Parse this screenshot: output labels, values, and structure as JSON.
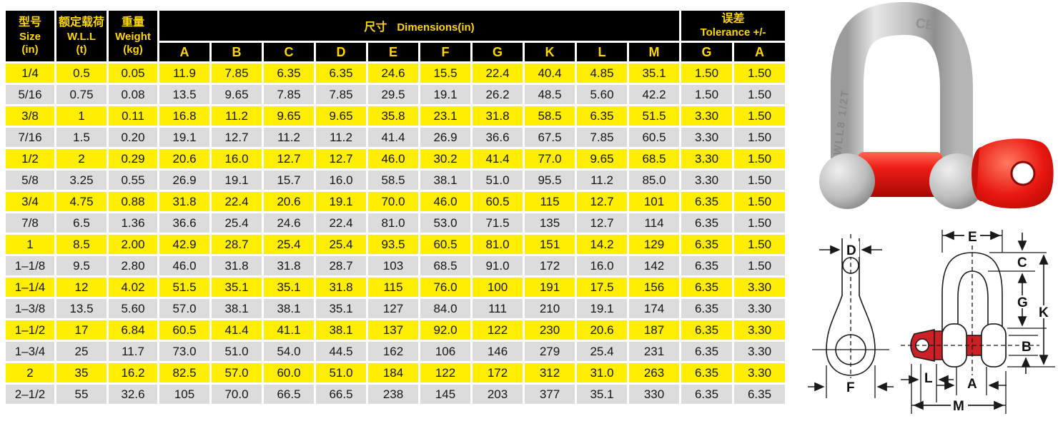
{
  "table": {
    "headers": {
      "size": {
        "zh": "型号",
        "en": "Size",
        "unit": "(in)"
      },
      "wll": {
        "zh": "额定载荷",
        "en": "W.L.L",
        "unit": "(t)"
      },
      "weight": {
        "zh": "重量",
        "en": "Weight",
        "unit": "(kg)"
      },
      "dimensions": {
        "zh": "尺寸",
        "en": "Dimensions(in)"
      },
      "tolerance": {
        "zh": "误差",
        "en": "Tolerance +/-"
      }
    },
    "sub_headers": [
      "A",
      "B",
      "C",
      "D",
      "E",
      "F",
      "G",
      "K",
      "L",
      "M",
      "G",
      "A"
    ],
    "columns": [
      "Size(in)",
      "W.L.L(t)",
      "Weight(kg)",
      "A",
      "B",
      "C",
      "D",
      "E",
      "F",
      "G",
      "K",
      "L",
      "M",
      "Tolerance G",
      "Tolerance A"
    ],
    "rows": [
      [
        "1/4",
        "0.5",
        "0.05",
        "11.9",
        "7.85",
        "6.35",
        "6.35",
        "24.6",
        "15.5",
        "22.4",
        "40.4",
        "4.85",
        "35.1",
        "1.50",
        "1.50"
      ],
      [
        "5/16",
        "0.75",
        "0.08",
        "13.5",
        "9.65",
        "7.85",
        "7.85",
        "29.5",
        "19.1",
        "26.2",
        "48.5",
        "5.60",
        "42.2",
        "1.50",
        "1.50"
      ],
      [
        "3/8",
        "1",
        "0.11",
        "16.8",
        "11.2",
        "9.65",
        "9.65",
        "35.8",
        "23.1",
        "31.8",
        "58.5",
        "6.35",
        "51.5",
        "3.30",
        "1.50"
      ],
      [
        "7/16",
        "1.5",
        "0.20",
        "19.1",
        "12.7",
        "11.2",
        "11.2",
        "41.4",
        "26.9",
        "36.6",
        "67.5",
        "7.85",
        "60.5",
        "3.30",
        "1.50"
      ],
      [
        "1/2",
        "2",
        "0.29",
        "20.6",
        "16.0",
        "12.7",
        "12.7",
        "46.0",
        "30.2",
        "41.4",
        "77.0",
        "9.65",
        "68.5",
        "3.30",
        "1.50"
      ],
      [
        "5/8",
        "3.25",
        "0.55",
        "26.9",
        "19.1",
        "15.7",
        "16.0",
        "58.5",
        "38.1",
        "51.0",
        "95.5",
        "11.2",
        "85.0",
        "3.30",
        "1.50"
      ],
      [
        "3/4",
        "4.75",
        "0.88",
        "31.8",
        "22.4",
        "20.6",
        "19.1",
        "70.0",
        "46.0",
        "60.5",
        "115",
        "12.7",
        "101",
        "6.35",
        "1.50"
      ],
      [
        "7/8",
        "6.5",
        "1.36",
        "36.6",
        "25.4",
        "24.6",
        "22.4",
        "81.0",
        "53.0",
        "71.5",
        "135",
        "12.7",
        "114",
        "6.35",
        "1.50"
      ],
      [
        "1",
        "8.5",
        "2.00",
        "42.9",
        "28.7",
        "25.4",
        "25.4",
        "93.5",
        "60.5",
        "81.0",
        "151",
        "14.2",
        "129",
        "6.35",
        "1.50"
      ],
      [
        "1–1/8",
        "9.5",
        "2.80",
        "46.0",
        "31.8",
        "31.8",
        "28.7",
        "103",
        "68.5",
        "91.0",
        "172",
        "16.0",
        "142",
        "6.35",
        "1.50"
      ],
      [
        "1–1/4",
        "12",
        "4.02",
        "51.5",
        "35.1",
        "35.1",
        "31.8",
        "115",
        "76.0",
        "100",
        "191",
        "17.5",
        "156",
        "6.35",
        "3.30"
      ],
      [
        "1–3/8",
        "13.5",
        "5.60",
        "57.0",
        "38.1",
        "38.1",
        "35.1",
        "127",
        "84.0",
        "111",
        "210",
        "19.1",
        "174",
        "6.35",
        "3.30"
      ],
      [
        "1–1/2",
        "17",
        "6.84",
        "60.5",
        "41.4",
        "41.1",
        "38.1",
        "137",
        "92.0",
        "122",
        "230",
        "20.6",
        "187",
        "6.35",
        "3.30"
      ],
      [
        "1–3/4",
        "25",
        "11.7",
        "73.0",
        "51.0",
        "54.0",
        "44.5",
        "162",
        "106",
        "146",
        "279",
        "25.4",
        "231",
        "6.35",
        "3.30"
      ],
      [
        "2",
        "35",
        "16.2",
        "82.5",
        "57.0",
        "60.0",
        "51.0",
        "184",
        "122",
        "172",
        "312",
        "31.0",
        "263",
        "6.35",
        "3.30"
      ],
      [
        "2–1/2",
        "55",
        "32.6",
        "105",
        "70.0",
        "66.5",
        "66.5",
        "238",
        "145",
        "203",
        "377",
        "35.1",
        "330",
        "6.35",
        "6.35"
      ]
    ],
    "colors": {
      "row_yellow": "#ffee00",
      "row_gray": "#dcdcdc",
      "header_bg": "#000000",
      "header_text": "#ffd800",
      "cell_text": "#151515"
    }
  },
  "photo": {
    "markings": {
      "ce": "CE",
      "wll": "WLL8 1/2T"
    },
    "body_color": "#c9c9c9",
    "pin_color": "#e31b17"
  },
  "diagram": {
    "labels": {
      "d": "D",
      "f": "F",
      "e": "E",
      "c": "C",
      "g": "G",
      "k": "K",
      "b": "B",
      "l": "L",
      "a": "A",
      "m": "M"
    },
    "pin_color": "#cc2027",
    "line_color": "#1a1a1a"
  }
}
